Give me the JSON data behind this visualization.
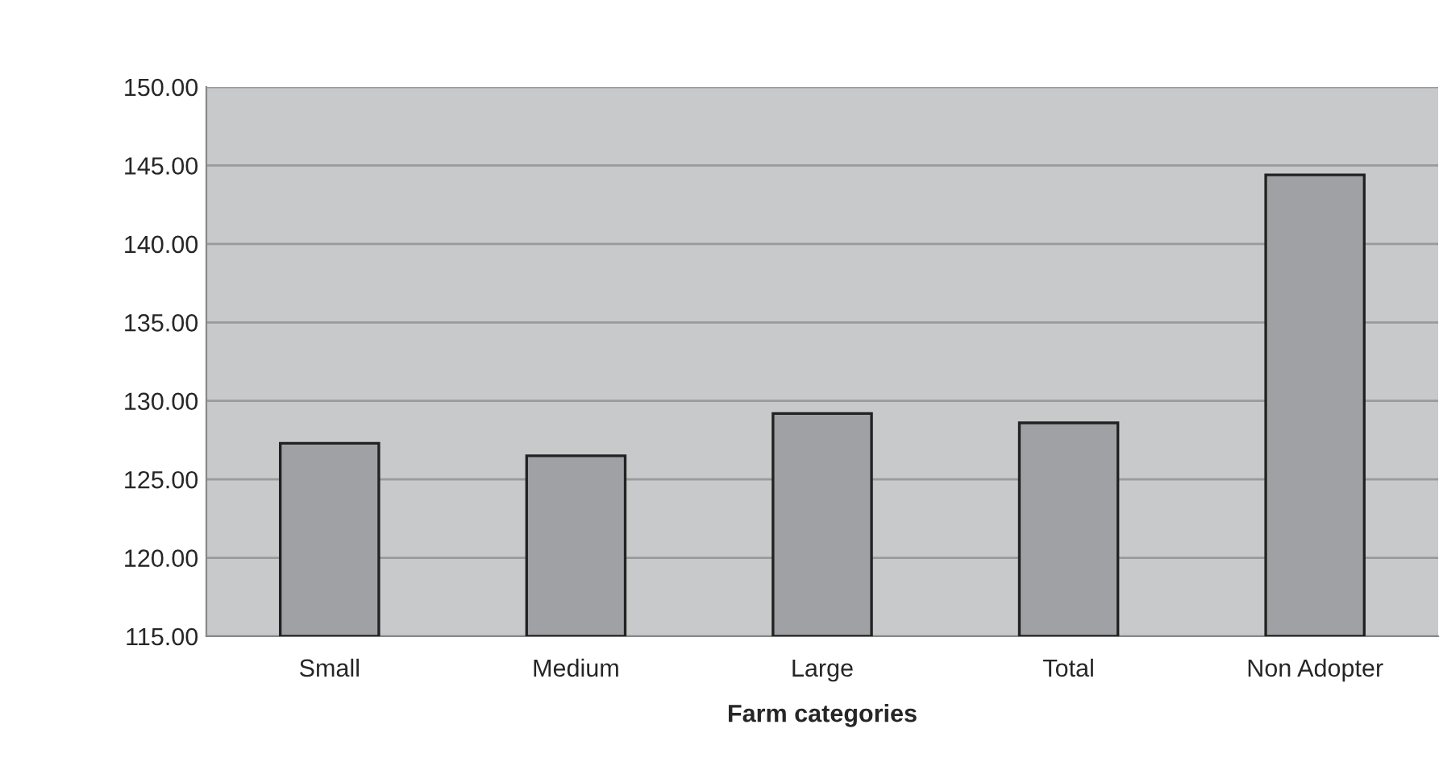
{
  "chart_data": {
    "type": "bar",
    "xlabel": "Farm categories",
    "categories": [
      "Small",
      "Medium",
      "Large",
      "Total",
      "Non Adopter"
    ],
    "values": [
      127.3,
      126.5,
      129.2,
      128.6,
      144.4
    ],
    "color": "#a0a1a5",
    "ylim": [
      115,
      150
    ],
    "yticks": [
      {
        "value": 115,
        "label": "115.00"
      },
      {
        "value": 120,
        "label": "120.00"
      },
      {
        "value": 125,
        "label": "125.00"
      },
      {
        "value": 130,
        "label": "130.00"
      },
      {
        "value": 135,
        "label": "135.00"
      },
      {
        "value": 140,
        "label": "140.00"
      },
      {
        "value": 145,
        "label": "145.00"
      },
      {
        "value": 150,
        "label": "150.00"
      }
    ],
    "grid": "y",
    "legend": false
  }
}
